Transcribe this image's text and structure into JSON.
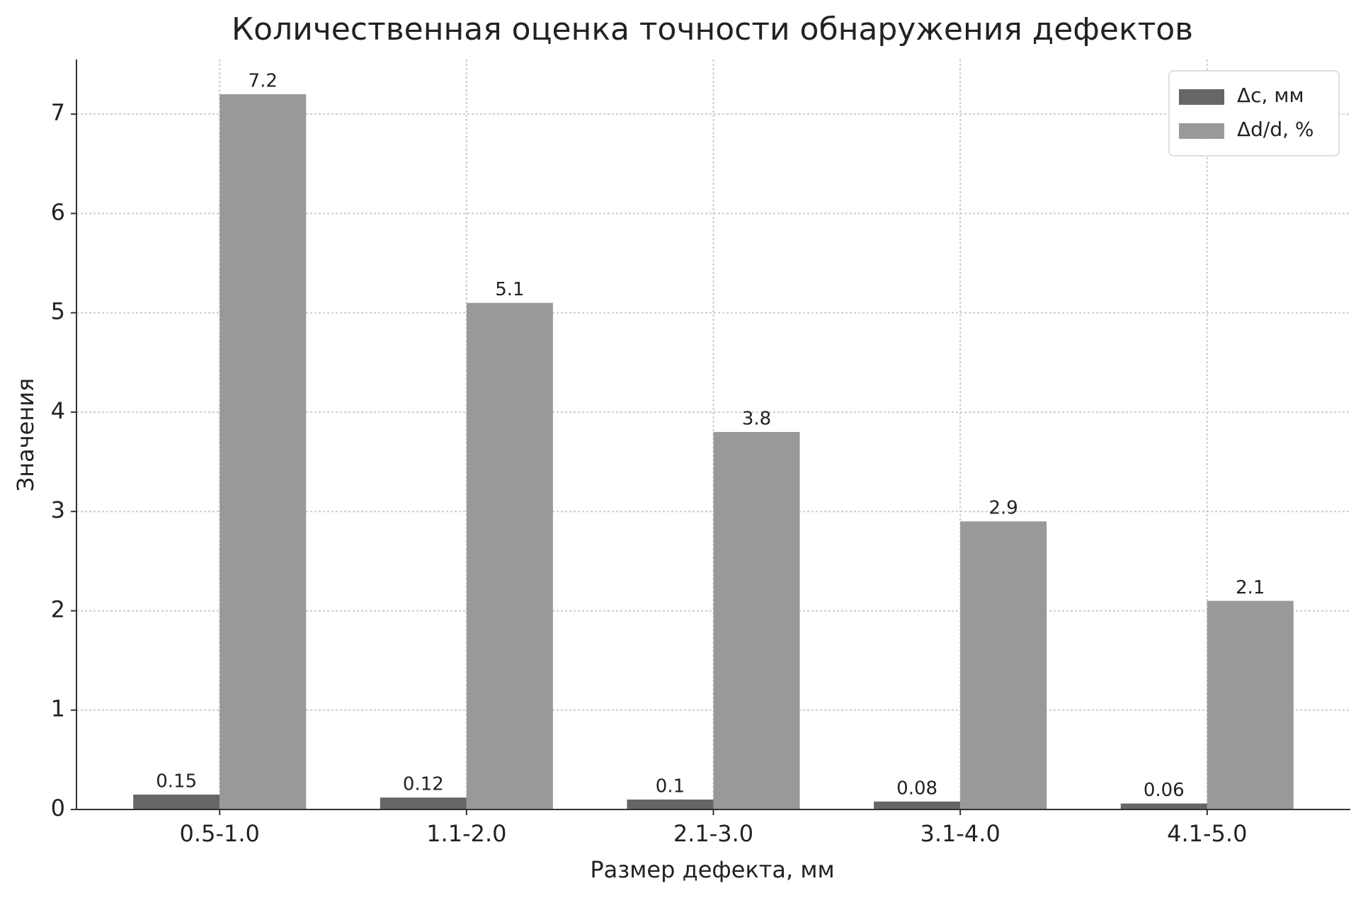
{
  "chart_data": {
    "type": "bar",
    "title": "Количественная оценка точности обнаружения дефектов",
    "x_label": "Размер дефекта, мм",
    "y_label": "Значения",
    "categories": [
      "0.5-1.0",
      "1.1-2.0",
      "2.1-3.0",
      "3.1-4.0",
      "4.1-5.0"
    ],
    "series": [
      {
        "name": "Δc, мм",
        "color": "#666666",
        "values": [
          0.15,
          0.12,
          0.1,
          0.08,
          0.06
        ]
      },
      {
        "name": "Δd/d, %",
        "color": "#999999",
        "values": [
          7.2,
          5.1,
          3.8,
          2.9,
          2.1
        ]
      }
    ],
    "ylim": [
      0,
      7.55
    ],
    "yticks": [
      0,
      1,
      2,
      3,
      4,
      5,
      6,
      7
    ],
    "grid": true,
    "legend": "upper right"
  }
}
